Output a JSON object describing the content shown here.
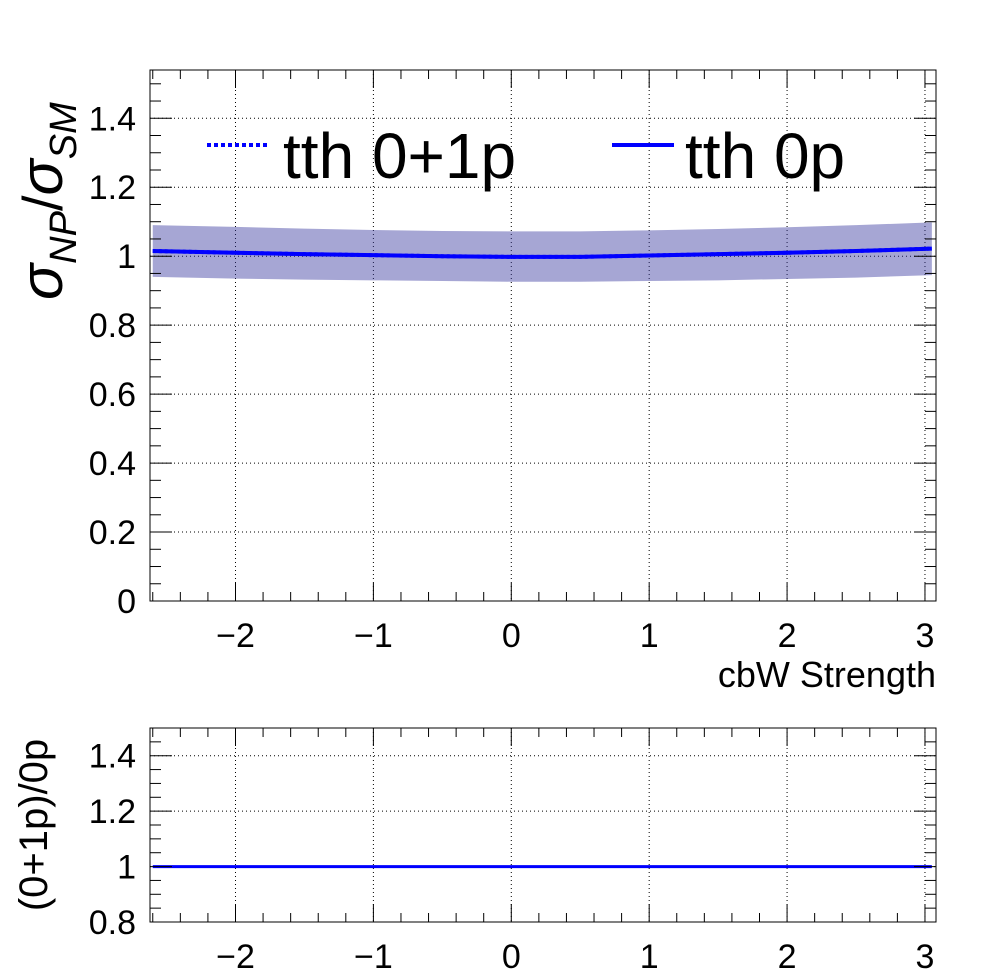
{
  "chart_data": [
    {
      "type": "line",
      "panel": "main",
      "xlabel": "cbW Strength",
      "ylabel": "σ_NP/σ_SM",
      "xlim": [
        -2.62,
        3.08
      ],
      "ylim": [
        0,
        1.54
      ],
      "x_ticks": [
        -2,
        -1,
        0,
        1,
        2,
        3
      ],
      "x_tick_labels": [
        "−2",
        "−1",
        "0",
        "1",
        "2",
        "3"
      ],
      "y_ticks": [
        0,
        0.2,
        0.4,
        0.6,
        0.8,
        1,
        1.2,
        1.4
      ],
      "y_tick_labels": [
        "0",
        "0.2",
        "0.4",
        "0.6",
        "0.8",
        "1",
        "1.2",
        "1.4"
      ],
      "grid": true,
      "legend_position": "top",
      "colors": {
        "series": "#0000ff",
        "band": "#3a3aa0"
      },
      "x": [
        -2.6,
        -2.0,
        -1.5,
        -1.0,
        -0.5,
        0.0,
        0.5,
        1.0,
        1.5,
        2.0,
        2.5,
        3.05
      ],
      "series": [
        {
          "name": "tth 0+1p",
          "style": "dotted",
          "values": [
            1.015,
            1.01,
            1.006,
            1.003,
            1.0,
            0.998,
            0.998,
            1.002,
            1.006,
            1.01,
            1.015,
            1.022
          ],
          "band_low": [
            0.94,
            0.935,
            0.932,
            0.93,
            0.928,
            0.926,
            0.926,
            0.928,
            0.93,
            0.934,
            0.938,
            0.945
          ],
          "band_high": [
            1.09,
            1.085,
            1.08,
            1.076,
            1.073,
            1.072,
            1.072,
            1.075,
            1.079,
            1.084,
            1.09,
            1.098
          ]
        },
        {
          "name": "tth 0p",
          "style": "solid",
          "values": [
            1.015,
            1.01,
            1.006,
            1.003,
            1.0,
            0.998,
            0.998,
            1.002,
            1.006,
            1.01,
            1.015,
            1.022
          ]
        }
      ]
    },
    {
      "type": "line",
      "panel": "ratio",
      "ylabel": "(0+1p)/0p",
      "xlim": [
        -2.62,
        3.08
      ],
      "ylim": [
        0.8,
        1.5
      ],
      "x_ticks": [
        -2,
        -1,
        0,
        1,
        2,
        3
      ],
      "x_tick_labels": [
        "−2",
        "−1",
        "0",
        "1",
        "2",
        "3"
      ],
      "y_ticks": [
        0.8,
        1,
        1.2,
        1.4
      ],
      "y_tick_labels": [
        "0.8",
        "1",
        "1.2",
        "1.4"
      ],
      "grid": true,
      "colors": {
        "series": "#0000ff"
      },
      "x": [
        -2.6,
        3.05
      ],
      "series": [
        {
          "values": [
            1.0,
            1.0
          ]
        }
      ]
    }
  ]
}
